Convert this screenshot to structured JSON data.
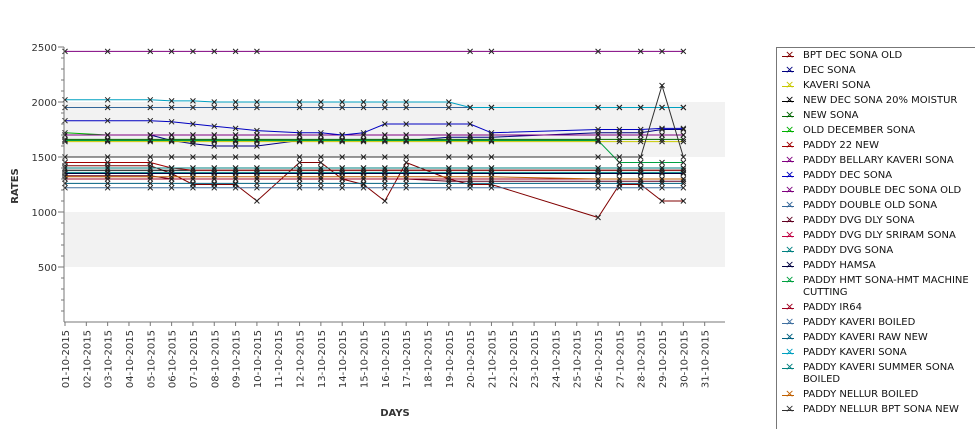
{
  "chart_data": {
    "type": "line",
    "xlabel": "DAYS",
    "ylabel": "RATES",
    "ylim": [
      0,
      2500
    ],
    "yticks": [
      500,
      1000,
      1500,
      2000,
      2500
    ],
    "grid": "alternating horizontal bands",
    "legend_position": "right",
    "categories": [
      "01-10-2015",
      "02-10-2015",
      "03-10-2015",
      "04-10-2015",
      "05-10-2015",
      "06-10-2015",
      "07-10-2015",
      "08-10-2015",
      "09-10-2015",
      "10-10-2015",
      "11-10-2015",
      "12-10-2015",
      "13-10-2015",
      "14-10-2015",
      "15-10-2015",
      "16-10-2015",
      "17-10-2015",
      "18-10-2015",
      "19-10-2015",
      "20-10-2015",
      "21-10-2015",
      "22-10-2015",
      "23-10-2015",
      "24-10-2015",
      "25-10-2015",
      "26-10-2015",
      "27-10-2015",
      "28-10-2015",
      "29-10-2015",
      "30-10-2015",
      "31-10-2015"
    ],
    "series": [
      {
        "name": "BPT DEC SONA OLD",
        "color": "#800000",
        "values": [
          1420,
          null,
          1420,
          null,
          1420,
          1350,
          1250,
          1250,
          1250,
          1100,
          null,
          1450,
          1450,
          1300,
          1250,
          1100,
          1450,
          null,
          1300,
          1250,
          1250,
          null,
          null,
          null,
          null,
          950,
          1250,
          1250,
          1100,
          1100,
          null
        ]
      },
      {
        "name": "DEC SONA",
        "color": "#000080",
        "values": [
          1700,
          null,
          1700,
          null,
          1700,
          1650,
          1620,
          1600,
          1600,
          1600,
          null,
          1650,
          1650,
          1650,
          1650,
          1650,
          1650,
          null,
          1680,
          1680,
          1680,
          null,
          null,
          null,
          null,
          1720,
          1720,
          1720,
          1750,
          1750,
          null
        ]
      },
      {
        "name": "KAVERI SONA",
        "color": "#c8c800",
        "values": [
          1640,
          null,
          1640,
          null,
          1640,
          1640,
          1640,
          1640,
          1640,
          1640,
          null,
          1640,
          1640,
          1640,
          1640,
          1640,
          1640,
          null,
          1640,
          1640,
          1640,
          null,
          null,
          null,
          null,
          1640,
          1640,
          1640,
          1640,
          1640,
          null
        ]
      },
      {
        "name": "NEW DEC SONA 20% MOISTUR",
        "color": "#000000",
        "values": [
          1380,
          null,
          1380,
          null,
          1380,
          1380,
          1380,
          1380,
          1380,
          1380,
          null,
          1380,
          1380,
          1380,
          1380,
          1380,
          1380,
          null,
          1380,
          1380,
          1380,
          null,
          null,
          null,
          null,
          1380,
          1380,
          1380,
          1380,
          1380,
          null
        ]
      },
      {
        "name": "NEW SONA",
        "color": "#006400",
        "values": [
          1660,
          null,
          1660,
          null,
          1660,
          1660,
          1660,
          1660,
          1660,
          1660,
          null,
          1660,
          1660,
          1660,
          1660,
          1660,
          1660,
          null,
          1660,
          1660,
          1660,
          null,
          null,
          null,
          null,
          1660,
          1660,
          1660,
          1660,
          1660,
          null
        ]
      },
      {
        "name": "OLD DECEMBER SONA",
        "color": "#00b000",
        "values": [
          1720,
          null,
          1700,
          null,
          1700,
          1700,
          1700,
          1700,
          1700,
          1700,
          null,
          1700,
          1700,
          1700,
          1700,
          1700,
          1700,
          null,
          1700,
          1700,
          1700,
          null,
          null,
          null,
          null,
          1700,
          1700,
          1700,
          1700,
          1700,
          null
        ]
      },
      {
        "name": "PADDY 22 NEW",
        "color": "#a00000",
        "values": [
          1450,
          null,
          1450,
          null,
          1450,
          1400,
          1380,
          1380,
          1380,
          1380,
          null,
          1380,
          1380,
          1380,
          1380,
          1380,
          1380,
          null,
          1380,
          1380,
          1380,
          null,
          null,
          null,
          null,
          1380,
          1380,
          1380,
          1380,
          1380,
          null
        ]
      },
      {
        "name": "PADDY BELLARY KAVERI SONA",
        "color": "#800080",
        "values": [
          1700,
          null,
          1700,
          null,
          1700,
          1700,
          1700,
          1700,
          1700,
          1700,
          null,
          1700,
          1700,
          1700,
          1700,
          1700,
          1700,
          null,
          1700,
          1700,
          1700,
          null,
          null,
          null,
          null,
          1700,
          1700,
          1700,
          1700,
          1700,
          null
        ]
      },
      {
        "name": "PADDY DEC SONA",
        "color": "#0000c0",
        "values": [
          1830,
          null,
          1830,
          null,
          1830,
          1820,
          1800,
          1780,
          1760,
          1740,
          null,
          1720,
          1720,
          1700,
          1720,
          1800,
          1800,
          null,
          1800,
          1800,
          1720,
          null,
          null,
          null,
          null,
          1750,
          1750,
          1750,
          1760,
          1760,
          null
        ]
      },
      {
        "name": "PADDY DOUBLE DEC SONA OLD",
        "color": "#7f007f",
        "values": [
          2460,
          null,
          2460,
          null,
          2460,
          2460,
          2460,
          2460,
          2460,
          2460,
          null,
          null,
          null,
          null,
          null,
          null,
          null,
          null,
          null,
          2460,
          2460,
          null,
          null,
          null,
          null,
          2460,
          null,
          2460,
          2460,
          2460,
          null
        ]
      },
      {
        "name": "PADDY DOUBLE OLD SONA",
        "color": "#336699",
        "values": [
          1950,
          null,
          1950,
          null,
          1950,
          1950,
          1950,
          1950,
          1950,
          1950,
          null,
          1950,
          1950,
          1950,
          1950,
          1950,
          1950,
          null,
          1950,
          1950,
          1950,
          null,
          null,
          null,
          null,
          1950,
          1950,
          1950,
          1950,
          1950,
          null
        ]
      },
      {
        "name": "PADDY DVG DLY SONA",
        "color": "#600020",
        "values": [
          1330,
          null,
          1330,
          null,
          1330,
          1300,
          1300,
          1300,
          1300,
          1300,
          null,
          1300,
          1300,
          1300,
          1300,
          1300,
          1300,
          null,
          1280,
          1280,
          1280,
          null,
          null,
          null,
          null,
          1280,
          1280,
          1280,
          1280,
          1280,
          null
        ]
      },
      {
        "name": "PADDY DVG DLY SRIRAM SONA",
        "color": "#c00040",
        "values": [
          1400,
          null,
          1400,
          null,
          1400,
          1400,
          1400,
          1400,
          1400,
          1400,
          null,
          1400,
          1400,
          1400,
          1400,
          1400,
          1400,
          null,
          1400,
          1400,
          1400,
          null,
          null,
          null,
          null,
          1400,
          1400,
          1400,
          1400,
          1400,
          null
        ]
      },
      {
        "name": "PADDY DVG SONA",
        "color": "#008080",
        "values": [
          1360,
          null,
          1360,
          null,
          1360,
          1360,
          1360,
          1360,
          1360,
          1360,
          null,
          1360,
          1360,
          1360,
          1360,
          1360,
          1360,
          null,
          1360,
          1360,
          1360,
          null,
          null,
          null,
          null,
          1360,
          1360,
          1360,
          1360,
          1360,
          null
        ]
      },
      {
        "name": "PADDY HAMSA",
        "color": "#000040",
        "values": [
          1350,
          null,
          1350,
          null,
          1350,
          1350,
          1350,
          1350,
          1350,
          1350,
          null,
          1350,
          1350,
          1350,
          1350,
          1350,
          1350,
          null,
          1350,
          1350,
          1350,
          null,
          null,
          null,
          null,
          1350,
          1350,
          1350,
          1350,
          1350,
          null
        ]
      },
      {
        "name": "PADDY HMT SONA-HMT MACHINE CUTTING",
        "color": "#00a040",
        "values": [
          1650,
          null,
          1650,
          null,
          1650,
          1650,
          1650,
          1650,
          1650,
          1650,
          null,
          1650,
          1650,
          1650,
          1650,
          1650,
          1650,
          null,
          1650,
          1650,
          1650,
          null,
          null,
          null,
          null,
          1650,
          1450,
          1450,
          1450,
          1450,
          null
        ]
      },
      {
        "name": "PADDY IR64",
        "color": "#a00020",
        "values": [
          1300,
          null,
          1300,
          null,
          1300,
          1300,
          1300,
          1300,
          1300,
          1300,
          null,
          1300,
          1300,
          1300,
          1300,
          1300,
          1300,
          null,
          1300,
          1300,
          1300,
          null,
          null,
          null,
          null,
          1300,
          1300,
          1300,
          1300,
          1300,
          null
        ]
      },
      {
        "name": "PADDY KAVERI BOILED",
        "color": "#4070a0",
        "values": [
          1220,
          null,
          1220,
          null,
          1220,
          1220,
          1220,
          1220,
          1220,
          1220,
          null,
          1220,
          1220,
          1220,
          1220,
          1220,
          1220,
          null,
          1220,
          1220,
          1220,
          null,
          null,
          null,
          null,
          1220,
          1220,
          1220,
          1220,
          1220,
          null
        ]
      },
      {
        "name": "PADDY KAVERI RAW NEW",
        "color": "#006080",
        "values": [
          1260,
          null,
          1260,
          null,
          1260,
          1260,
          1260,
          1260,
          1260,
          1260,
          null,
          1260,
          1260,
          1260,
          1260,
          1260,
          1260,
          null,
          1260,
          1260,
          1260,
          null,
          null,
          null,
          null,
          1260,
          1260,
          1260,
          1260,
          1260,
          null
        ]
      },
      {
        "name": "PADDY KAVERI SONA",
        "color": "#00a0c0",
        "values": [
          2020,
          null,
          2020,
          null,
          2020,
          2010,
          2010,
          2000,
          2000,
          2000,
          null,
          2000,
          2000,
          2000,
          2000,
          2000,
          2000,
          null,
          2000,
          1950,
          1950,
          null,
          null,
          null,
          null,
          1950,
          1950,
          1950,
          1950,
          1950,
          null
        ]
      },
      {
        "name": "PADDY KAVERI SUMMER SONA BOILED",
        "color": "#008080",
        "values": [
          1400,
          null,
          1400,
          null,
          1400,
          1400,
          1400,
          1400,
          1400,
          1400,
          null,
          1400,
          1400,
          1400,
          1400,
          1400,
          1400,
          null,
          1400,
          1400,
          1400,
          null,
          null,
          null,
          null,
          1400,
          1400,
          1400,
          1400,
          1400,
          null
        ]
      },
      {
        "name": "PADDY NELLUR BOILED",
        "color": "#c06000",
        "values": [
          1320,
          null,
          1320,
          null,
          1320,
          1320,
          1320,
          1320,
          1320,
          1320,
          null,
          1320,
          1320,
          1320,
          1320,
          1320,
          1320,
          null,
          1320,
          1320,
          1320,
          null,
          null,
          null,
          null,
          1300,
          1300,
          1300,
          1300,
          1300,
          null
        ]
      },
      {
        "name": "PADDY NELLUR BPT SONA NEW",
        "color": "#303030",
        "values": [
          1500,
          null,
          1500,
          null,
          1500,
          1500,
          1500,
          1500,
          1500,
          1500,
          null,
          1500,
          1500,
          1500,
          1500,
          1500,
          1500,
          null,
          1500,
          1500,
          1500,
          null,
          null,
          null,
          null,
          1500,
          1500,
          1500,
          2150,
          1500,
          null
        ]
      }
    ]
  }
}
